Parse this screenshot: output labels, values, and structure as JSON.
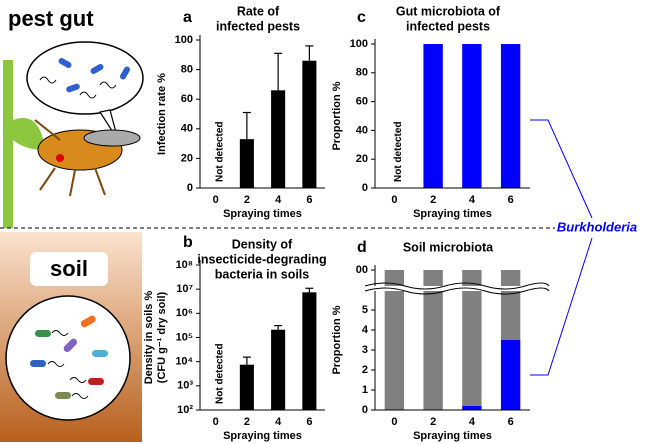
{
  "illustration": {
    "top_label": "pest gut",
    "bottom_label": "soil"
  },
  "chart_data": [
    {
      "type": "bar",
      "panel_label": "a",
      "title": [
        "Rate of",
        "infected pests"
      ],
      "y_label": [
        "Infection rate %"
      ],
      "x_label": "Spraying times",
      "not_detected": "Not detected",
      "categories": [
        "0",
        "2",
        "4",
        "6"
      ],
      "series": [
        {
          "color": "#000000",
          "values": [
            null,
            33,
            66,
            86
          ],
          "errors": [
            null,
            18,
            25,
            10
          ]
        }
      ],
      "ylim": [
        0,
        100
      ],
      "yticks": [
        0,
        20,
        40,
        60,
        80,
        100
      ]
    },
    {
      "type": "bar",
      "panel_label": "b",
      "title": [
        "Density of",
        "insecticide-degrading",
        "bacteria in soils"
      ],
      "y_label": [
        "Density in soils %",
        "(CFU g⁻¹ dry soil)"
      ],
      "x_label": "Spraying times",
      "not_detected": "Not detected",
      "categories": [
        "0",
        "2",
        "4",
        "6"
      ],
      "series": [
        {
          "color": "#000000",
          "values": [
            null,
            7400,
            210000,
            7400000
          ],
          "errors": [
            null,
            8000,
            100000,
            3500000
          ]
        }
      ],
      "log_scale": true,
      "ylim": [
        100,
        100000000
      ],
      "yticks": [
        {
          "value": 100,
          "label": "10²"
        },
        {
          "value": 1000,
          "label": "10³"
        },
        {
          "value": 10000,
          "label": "10⁴"
        },
        {
          "value": 100000,
          "label": "10⁵"
        },
        {
          "value": 1000000,
          "label": "10⁶"
        },
        {
          "value": 10000000,
          "label": "10⁷"
        },
        {
          "value": 100000000,
          "label": "10⁸"
        }
      ]
    },
    {
      "type": "bar",
      "panel_label": "c",
      "title": [
        "Gut microbiota of",
        "infected pests"
      ],
      "y_label": [
        "Proportion %"
      ],
      "x_label": "Spraying times",
      "not_detected": "Not detected",
      "categories": [
        "0",
        "2",
        "4",
        "6"
      ],
      "series": [
        {
          "name": "Burkholderia",
          "color": "#0000ff",
          "values": [
            null,
            100,
            100,
            100
          ]
        }
      ],
      "ylim": [
        0,
        100
      ],
      "yticks": [
        0,
        20,
        40,
        60,
        80,
        100
      ]
    },
    {
      "type": "stacked_bar",
      "panel_label": "d",
      "title": [
        "Soil microbiota"
      ],
      "y_label": [
        "Proportion %"
      ],
      "x_label": "Spraying times",
      "categories": [
        "0",
        "2",
        "4",
        "6"
      ],
      "series": [
        {
          "color": "#0000ff",
          "values": [
            0,
            0,
            0.2,
            3.5
          ]
        },
        {
          "color": "#808080",
          "values": [
            100,
            100,
            99.8,
            96.5
          ]
        }
      ],
      "ylim": [
        0,
        100
      ],
      "ybreak": [
        5.8,
        99.5
      ],
      "yticks": [
        0,
        1,
        2,
        3,
        4,
        5,
        {
          "value": 100,
          "label": "00"
        }
      ]
    }
  ]
}
